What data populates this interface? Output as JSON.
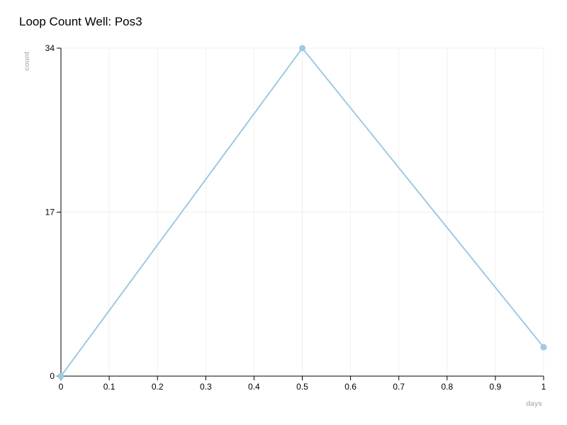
{
  "chart_data": {
    "type": "line",
    "title": "Loop Count Well: Pos3",
    "x_label": "days",
    "y_label": "count",
    "x": [
      0,
      0.5,
      1
    ],
    "values": [
      0,
      34,
      3
    ],
    "color": "#9ecae1",
    "xlim": [
      0,
      1
    ],
    "xticks": [
      0,
      0.1,
      0.2,
      0.3,
      0.4,
      0.5,
      0.6,
      0.7,
      0.8,
      0.9,
      1
    ],
    "ylim": [
      0,
      34
    ],
    "yticks": [
      0,
      17,
      34
    ],
    "grid": true
  }
}
